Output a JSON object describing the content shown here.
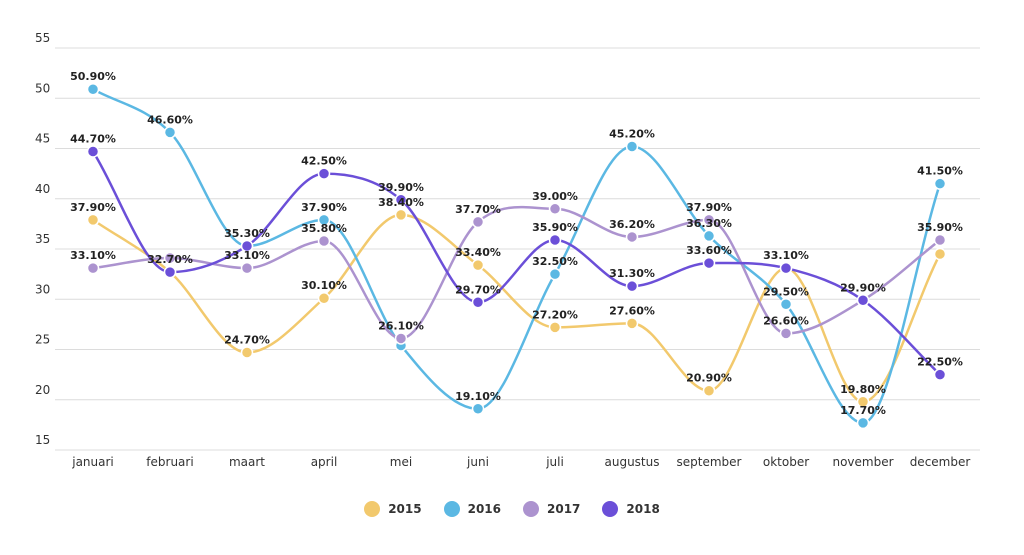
{
  "chart_data": {
    "type": "line",
    "title": "",
    "xlabel": "",
    "ylabel": "",
    "categories": [
      "januari",
      "februari",
      "maart",
      "april",
      "mei",
      "juni",
      "juli",
      "augustus",
      "september",
      "oktober",
      "november",
      "december"
    ],
    "ylim": [
      15,
      55
    ],
    "yticks": [
      "15",
      "20",
      "25",
      "30",
      "35",
      "40",
      "45",
      "50",
      "55"
    ],
    "grid": true,
    "legend_position": "bottom-center",
    "series": [
      {
        "name": "2015",
        "color": "#f2c96d",
        "values": [
          37.9,
          32.7,
          24.7,
          30.1,
          38.4,
          33.4,
          27.2,
          27.6,
          20.9,
          33.1,
          19.8,
          34.5
        ],
        "labels": [
          "37.90%",
          "",
          "24.70%",
          "30.10%",
          "38.40%",
          "33.40%",
          "27.20%",
          "27.60%",
          "20.90%",
          "",
          "19.80%",
          ""
        ]
      },
      {
        "name": "2016",
        "color": "#5bb8e3",
        "values": [
          50.9,
          46.6,
          35.3,
          37.9,
          25.4,
          19.1,
          32.5,
          45.2,
          36.3,
          29.5,
          17.7,
          41.5
        ],
        "labels": [
          "50.90%",
          "46.60%",
          "",
          "37.90%",
          "",
          "19.10%",
          "32.50%",
          "45.20%",
          "36.30%",
          "29.50%",
          "17.70%",
          "41.50%"
        ]
      },
      {
        "name": "2017",
        "color": "#ac93cf",
        "values": [
          33.1,
          34.1,
          33.1,
          35.8,
          26.1,
          37.7,
          39.0,
          36.2,
          37.9,
          26.6,
          29.9,
          35.9
        ],
        "labels": [
          "33.10%",
          "",
          "33.10%",
          "35.80%",
          "26.10%",
          "37.70%",
          "39.00%",
          "36.20%",
          "37.90%",
          "26.60%",
          "",
          "35.90%"
        ]
      },
      {
        "name": "2018",
        "color": "#6b4fd8",
        "values": [
          44.7,
          32.7,
          35.3,
          42.5,
          39.9,
          29.7,
          35.9,
          31.3,
          33.6,
          33.1,
          29.9,
          22.5
        ],
        "labels": [
          "44.70%",
          "32.70%",
          "35.30%",
          "42.50%",
          "39.90%",
          "29.70%",
          "35.90%",
          "31.30%",
          "33.60%",
          "33.10%",
          "29.90%",
          "22.50%"
        ]
      }
    ]
  }
}
